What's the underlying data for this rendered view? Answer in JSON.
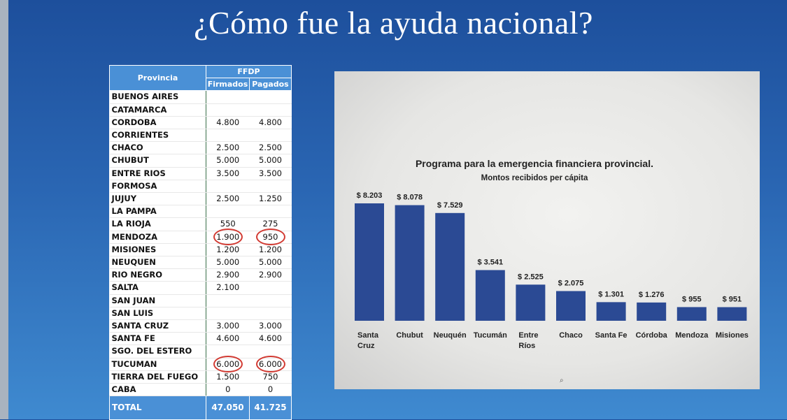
{
  "title": "¿Cómo fue la ayuda nacional?",
  "table": {
    "header_provincia": "Provincia",
    "header_group": "FFDP",
    "header_firmados": "Firmados",
    "header_pagados": "Pagados",
    "rows": [
      {
        "provincia": "BUENOS AIRES",
        "firmados": "",
        "pagados": ""
      },
      {
        "provincia": "CATAMARCA",
        "firmados": "",
        "pagados": ""
      },
      {
        "provincia": "CORDOBA",
        "firmados": "4.800",
        "pagados": "4.800"
      },
      {
        "provincia": "CORRIENTES",
        "firmados": "",
        "pagados": ""
      },
      {
        "provincia": "CHACO",
        "firmados": "2.500",
        "pagados": "2.500"
      },
      {
        "provincia": "CHUBUT",
        "firmados": "5.000",
        "pagados": "5.000"
      },
      {
        "provincia": "ENTRE RIOS",
        "firmados": "3.500",
        "pagados": "3.500"
      },
      {
        "provincia": "FORMOSA",
        "firmados": "",
        "pagados": ""
      },
      {
        "provincia": "JUJUY",
        "firmados": "2.500",
        "pagados": "1.250"
      },
      {
        "provincia": "LA PAMPA",
        "firmados": "",
        "pagados": ""
      },
      {
        "provincia": "LA RIOJA",
        "firmados": "550",
        "pagados": "275"
      },
      {
        "provincia": "MENDOZA",
        "firmados": "1.900",
        "pagados": "950"
      },
      {
        "provincia": "MISIONES",
        "firmados": "1.200",
        "pagados": "1.200"
      },
      {
        "provincia": "NEUQUEN",
        "firmados": "5.000",
        "pagados": "5.000"
      },
      {
        "provincia": "RIO NEGRO",
        "firmados": "2.900",
        "pagados": "2.900"
      },
      {
        "provincia": "SALTA",
        "firmados": "2.100",
        "pagados": ""
      },
      {
        "provincia": "SAN JUAN",
        "firmados": "",
        "pagados": ""
      },
      {
        "provincia": "SAN LUIS",
        "firmados": "",
        "pagados": ""
      },
      {
        "provincia": "SANTA CRUZ",
        "firmados": "3.000",
        "pagados": "3.000"
      },
      {
        "provincia": "SANTA FE",
        "firmados": "4.600",
        "pagados": "4.600"
      },
      {
        "provincia": "SGO. DEL ESTERO",
        "firmados": "",
        "pagados": ""
      },
      {
        "provincia": "TUCUMAN",
        "firmados": "6.000",
        "pagados": "6.000"
      },
      {
        "provincia": "TIERRA DEL FUEGO",
        "firmados": "1.500",
        "pagados": "750"
      },
      {
        "provincia": "CABA",
        "firmados": "0",
        "pagados": "0"
      }
    ],
    "total_label": "TOTAL",
    "total_firmados": "47.050",
    "total_pagados": "41.725",
    "highlighted_rows": [
      "MENDOZA",
      "TUCUMAN"
    ],
    "highlight_color": "#d23a32"
  },
  "chart_data": {
    "type": "bar",
    "title": "Programa para la emergencia financiera provincial.",
    "subtitle": "Montos recibidos per cápita",
    "categories": [
      "Santa Cruz",
      "Chubut",
      "Neuquén",
      "Tucumán",
      "Entre Ríos",
      "Chaco",
      "Santa Fe",
      "Córdoba",
      "Mendoza",
      "Misiones"
    ],
    "category_lines": [
      [
        "Santa",
        "Cruz"
      ],
      [
        "Chubut"
      ],
      [
        "Neuquén"
      ],
      [
        "Tucumán"
      ],
      [
        "Entre",
        "Ríos"
      ],
      [
        "Chaco"
      ],
      [
        "Santa Fe"
      ],
      [
        "Córdoba"
      ],
      [
        "Mendoza"
      ],
      [
        "Misiones"
      ]
    ],
    "values": [
      8203,
      8078,
      7529,
      3541,
      2525,
      2075,
      1301,
      1276,
      955,
      951
    ],
    "value_labels": [
      "$ 8.203",
      "$ 8.078",
      "$ 7.529",
      "$ 3.541",
      "$ 2.525",
      "$ 2.075",
      "$ 1.301",
      "$ 1.276",
      "$ 955",
      "$ 951"
    ],
    "bar_color": "#2b4a94",
    "ylim": [
      0,
      8203
    ]
  }
}
